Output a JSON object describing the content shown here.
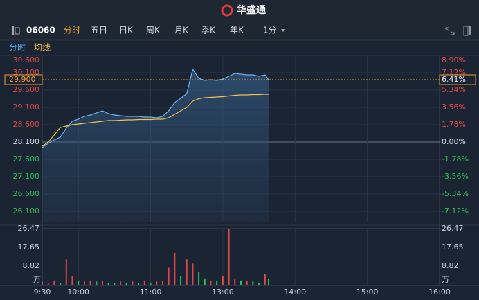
{
  "header": {
    "title": "华盛通"
  },
  "toolbar": {
    "code": "06060",
    "tabs": [
      "分时",
      "五日",
      "日K",
      "周K",
      "月K",
      "季K",
      "年K"
    ],
    "active": 0,
    "interval": "1分"
  },
  "legend": {
    "price": "分时",
    "average": "均线"
  },
  "chart_data": [
    {
      "type": "line",
      "x": [
        0,
        5,
        10,
        15,
        20,
        25,
        30,
        35,
        40,
        45,
        50,
        55,
        60,
        65,
        70,
        75,
        80,
        85,
        90,
        95,
        100,
        105,
        110,
        115,
        120,
        125,
        130,
        135,
        140,
        145,
        150,
        155,
        160,
        165,
        170,
        175,
        180,
        185,
        188
      ],
      "series": [
        {
          "name": "分时",
          "color": "#6fb3f0",
          "values": [
            27.94,
            28.06,
            28.16,
            28.24,
            28.5,
            28.7,
            28.76,
            28.84,
            28.88,
            28.94,
            29.0,
            28.92,
            28.88,
            28.86,
            28.84,
            28.84,
            28.84,
            28.82,
            28.82,
            28.8,
            28.84,
            29.0,
            29.24,
            29.36,
            29.5,
            30.2,
            29.94,
            29.88,
            29.9,
            29.88,
            29.92,
            30.0,
            30.08,
            30.06,
            30.04,
            30.04,
            30.0,
            30.04,
            29.9
          ]
        },
        {
          "name": "均线",
          "color": "#f2c14e",
          "values": [
            27.98,
            28.1,
            28.3,
            28.52,
            28.56,
            28.6,
            28.62,
            28.64,
            28.66,
            28.68,
            28.7,
            28.72,
            28.72,
            28.73,
            28.74,
            28.74,
            28.75,
            28.75,
            28.75,
            28.76,
            28.76,
            28.8,
            28.9,
            29.0,
            29.1,
            29.28,
            29.35,
            29.38,
            29.39,
            29.4,
            29.41,
            29.43,
            29.45,
            29.46,
            29.46,
            29.47,
            29.47,
            29.48,
            29.48
          ]
        }
      ],
      "xlim": [
        0,
        330
      ],
      "xticks": [
        {
          "value": 0,
          "label": "9:30"
        },
        {
          "value": 30,
          "label": "10:00"
        },
        {
          "value": 90,
          "label": "11:00"
        },
        {
          "value": 150,
          "label": "13:00"
        },
        {
          "value": 210,
          "label": "14:00"
        },
        {
          "value": 270,
          "label": "15:00"
        },
        {
          "value": 330,
          "label": "16:00"
        }
      ],
      "ylim": [
        25.8,
        30.6
      ],
      "yticks": [
        {
          "value": 30.6,
          "label": "30.600"
        },
        {
          "value": 30.1,
          "label": "30.100"
        },
        {
          "value": 29.6,
          "label": "29.600"
        },
        {
          "value": 29.1,
          "label": "29.100"
        },
        {
          "value": 28.6,
          "label": "28.600"
        },
        {
          "value": 28.1,
          "label": "28.100"
        },
        {
          "value": 27.6,
          "label": "27.600"
        },
        {
          "value": 27.1,
          "label": "27.100"
        },
        {
          "value": 26.6,
          "label": "26.600"
        },
        {
          "value": 26.1,
          "label": "26.100"
        }
      ],
      "y2lim": [
        -8.19,
        8.9
      ],
      "y2ticks": [
        {
          "value": 8.9,
          "label": "8.90%"
        },
        {
          "value": 7.12,
          "label": "7.12%"
        },
        {
          "value": 5.34,
          "label": "5.34%"
        },
        {
          "value": 3.56,
          "label": "3.56%"
        },
        {
          "value": 1.78,
          "label": "1.78%"
        },
        {
          "value": 0,
          "label": "0.00%"
        },
        {
          "value": -1.78,
          "label": "-1.78%"
        },
        {
          "value": -3.56,
          "label": "-3.56%"
        },
        {
          "value": -5.34,
          "label": "-5.34%"
        },
        {
          "value": -7.12,
          "label": "-7.12%"
        }
      ],
      "last_price": {
        "value": 29.9,
        "label": "29.900"
      },
      "last_change": {
        "value": 6.41,
        "label": "6.41%"
      },
      "grid": true
    },
    {
      "type": "bar",
      "x": [
        0,
        5,
        10,
        15,
        20,
        25,
        30,
        35,
        40,
        45,
        50,
        55,
        60,
        65,
        70,
        75,
        80,
        85,
        90,
        95,
        100,
        105,
        110,
        115,
        120,
        125,
        130,
        135,
        140,
        145,
        150,
        155,
        160,
        165,
        170,
        175,
        180,
        185,
        188
      ],
      "values": [
        1.5,
        1,
        2,
        1,
        12,
        4,
        2,
        1.5,
        2,
        1.5,
        2,
        1,
        1,
        1.5,
        1,
        1.5,
        1,
        2,
        1,
        1.5,
        2,
        8,
        15,
        4,
        12,
        10,
        6,
        3,
        2,
        2,
        4,
        26.47,
        3,
        2,
        2,
        1.5,
        1,
        5,
        3
      ],
      "colors": [
        "#e04848",
        "#e04848",
        "#e04848",
        "#2fbf5a",
        "#e04848",
        "#e04848",
        "#2fbf5a",
        "#e04848",
        "#e04848",
        "#2fbf5a",
        "#e04848",
        "#2fbf5a",
        "#2fbf5a",
        "#e04848",
        "#2fbf5a",
        "#e04848",
        "#2fbf5a",
        "#e04848",
        "#2fbf5a",
        "#e04848",
        "#e04848",
        "#e04848",
        "#e04848",
        "#2fbf5a",
        "#e04848",
        "#e04848",
        "#2fbf5a",
        "#2fbf5a",
        "#e04848",
        "#2fbf5a",
        "#e04848",
        "#e04848",
        "#e04848",
        "#2fbf5a",
        "#e04848",
        "#2fbf5a",
        "#2fbf5a",
        "#e04848",
        "#2fbf5a"
      ],
      "xlim": [
        0,
        330
      ],
      "ylim": [
        0,
        26.47
      ],
      "yticks": [
        26.47,
        17.65,
        8.82
      ],
      "unit": "万"
    }
  ]
}
